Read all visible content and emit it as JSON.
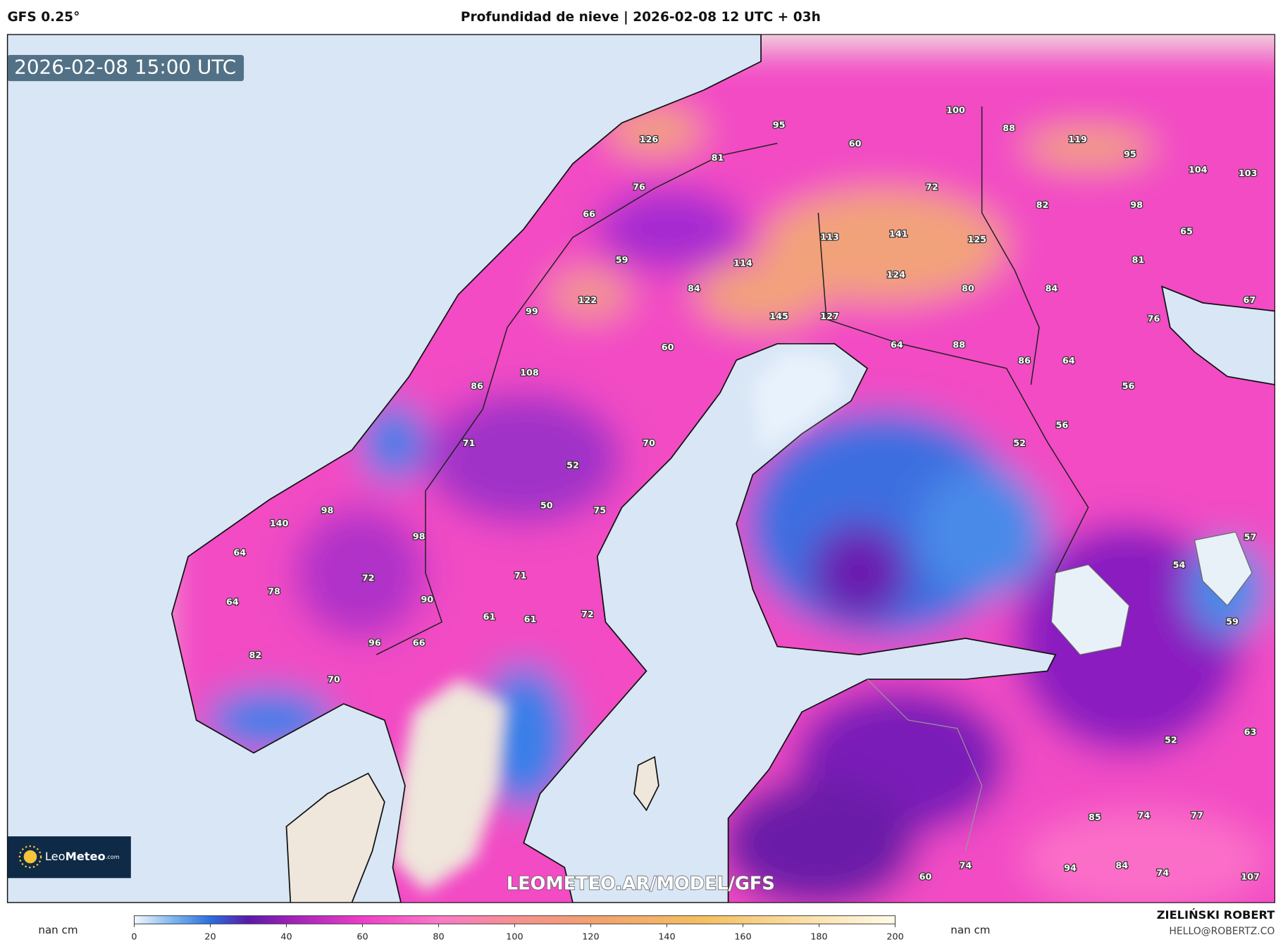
{
  "header": {
    "model": "GFS 0.25°",
    "title": "Profundidad de nieve | 2026-02-08 12 UTC + 03h"
  },
  "map": {
    "timestamp": "2026-02-08 15:00 UTC",
    "watermark": "LEOMETEO.AR/MODEL/GFS",
    "logo": {
      "name": "Leo",
      "name_bold": "Meteo",
      "suffix": ".com"
    },
    "labels": [
      126,
      95,
      100,
      88,
      60,
      119,
      95,
      104,
      103,
      81,
      72,
      76,
      82,
      98,
      66,
      113,
      141,
      125,
      65,
      59,
      114,
      84,
      124,
      81,
      80,
      84,
      122,
      99,
      145,
      127,
      67,
      76,
      60,
      64,
      88,
      86,
      64,
      108,
      86,
      56,
      56,
      71,
      70,
      52,
      52,
      50,
      75,
      140,
      98,
      98,
      64,
      57,
      54,
      72,
      71,
      78,
      64,
      90,
      72,
      61,
      61,
      59,
      96,
      66,
      82,
      70,
      52,
      63,
      85,
      74,
      77,
      74,
      94,
      84,
      74,
      60,
      107
    ]
  },
  "colorbar": {
    "unit": "nan cm",
    "range": [
      0,
      200
    ],
    "ticks": [
      0,
      20,
      40,
      60,
      80,
      100,
      120,
      140,
      160,
      180,
      200
    ]
  },
  "credits": {
    "author": "ZIELIŃSKI ROBERT",
    "email": "HELLO@ROBERTZ.CO"
  }
}
